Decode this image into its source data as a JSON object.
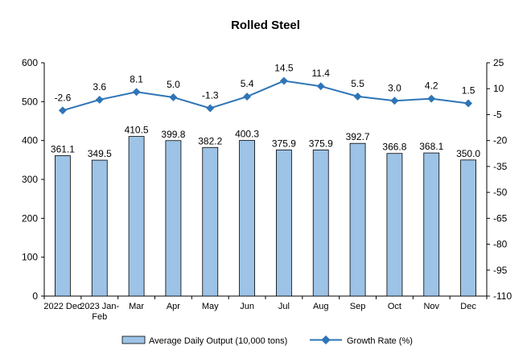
{
  "chart_data": {
    "type": "bar",
    "title": "Rolled Steel",
    "categories": [
      "2022 Dec",
      "2023 Jan-Feb",
      "Mar",
      "Apr",
      "May",
      "Jun",
      "Jul",
      "Aug",
      "Sep",
      "Oct",
      "Nov",
      "Dec"
    ],
    "series": [
      {
        "name": "Average Daily Output (10,000 tons)",
        "type": "bar",
        "axis": "left",
        "values": [
          361.1,
          349.5,
          410.5,
          399.8,
          382.2,
          400.3,
          375.9,
          375.9,
          392.7,
          366.8,
          368.1,
          350.0
        ],
        "labels": [
          "361.1",
          "349.5",
          "410.5",
          "399.8",
          "382.2",
          "400.3",
          "375.9",
          "375.9",
          "392.7",
          "366.8",
          "368.1",
          "350.0"
        ],
        "color": "#9DC3E6"
      },
      {
        "name": "Growth Rate (%)",
        "type": "line",
        "axis": "right",
        "values": [
          -2.6,
          3.6,
          8.1,
          5.0,
          -1.3,
          5.4,
          14.5,
          11.4,
          5.5,
          3.0,
          4.2,
          1.5
        ],
        "labels": [
          "-2.6",
          "3.6",
          "8.1",
          "5.0",
          "-1.3",
          "5.4",
          "14.5",
          "11.4",
          "5.5",
          "3.0",
          "4.2",
          "1.5"
        ],
        "color": "#2E75B6"
      }
    ],
    "y_left": {
      "min": 0,
      "max": 600,
      "ticks": [
        0,
        100,
        200,
        300,
        400,
        500,
        600
      ]
    },
    "y_right": {
      "min": -110,
      "max": 25,
      "ticks": [
        25,
        10,
        -5,
        -20,
        -35,
        -50,
        -65,
        -80,
        -95,
        -110
      ]
    },
    "grid": false,
    "legend": "bottom",
    "colors": {
      "bar_fill": "#9DC3E6",
      "bar_stroke": "#000000",
      "line": "#2E75B6"
    }
  }
}
